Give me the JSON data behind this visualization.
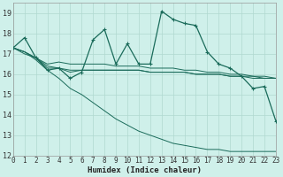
{
  "xlabel": "Humidex (Indice chaleur)",
  "background_color": "#cff0ea",
  "grid_color": "#b0d8d0",
  "line_color": "#1a6b5a",
  "xlim": [
    0,
    23
  ],
  "ylim": [
    12,
    19.5
  ],
  "yticks": [
    12,
    13,
    14,
    15,
    16,
    17,
    18,
    19
  ],
  "xticks": [
    0,
    1,
    2,
    3,
    4,
    5,
    6,
    7,
    8,
    9,
    10,
    11,
    12,
    13,
    14,
    15,
    16,
    17,
    18,
    19,
    20,
    21,
    22,
    23
  ],
  "xlabel_fontsize": 6.5,
  "tick_fontsize": 5.5,
  "series_main": [
    17.3,
    17.8,
    16.8,
    16.2,
    16.3,
    15.8,
    16.1,
    17.7,
    18.2,
    16.5,
    17.5,
    16.5,
    16.5,
    19.1,
    18.7,
    18.5,
    18.4,
    17.1,
    16.5,
    16.3,
    15.9,
    15.3,
    15.4,
    13.7
  ],
  "series_flat1": [
    17.3,
    17.1,
    16.8,
    16.5,
    16.6,
    16.5,
    16.5,
    16.5,
    16.5,
    16.4,
    16.4,
    16.4,
    16.3,
    16.3,
    16.3,
    16.2,
    16.2,
    16.1,
    16.1,
    16.0,
    16.0,
    15.9,
    15.9,
    15.8
  ],
  "series_flat2": [
    17.3,
    17.1,
    16.8,
    16.4,
    16.3,
    16.2,
    16.2,
    16.2,
    16.2,
    16.2,
    16.2,
    16.2,
    16.1,
    16.1,
    16.1,
    16.1,
    16.0,
    16.0,
    16.0,
    15.9,
    15.9,
    15.9,
    15.8,
    15.8
  ],
  "series_flat3": [
    17.3,
    17.0,
    16.8,
    16.3,
    16.3,
    16.1,
    16.2,
    16.2,
    16.2,
    16.2,
    16.2,
    16.2,
    16.1,
    16.1,
    16.1,
    16.1,
    16.0,
    16.0,
    16.0,
    15.9,
    15.9,
    15.8,
    15.8,
    15.8
  ],
  "series_diagonal": [
    17.3,
    17.1,
    16.7,
    16.2,
    15.8,
    15.3,
    15.0,
    14.6,
    14.2,
    13.8,
    13.5,
    13.2,
    13.0,
    12.8,
    12.6,
    12.5,
    12.4,
    12.3,
    12.3,
    12.2,
    12.2,
    12.2,
    12.2,
    12.2
  ]
}
